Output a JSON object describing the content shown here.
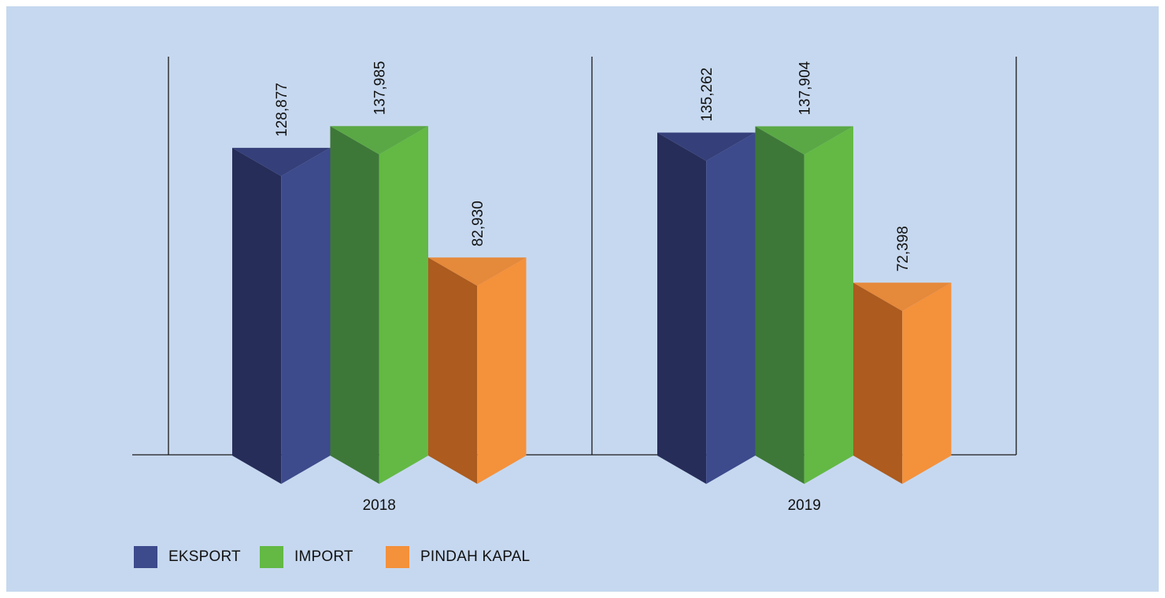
{
  "chart_data": {
    "type": "bar",
    "categories": [
      "2018",
      "2019"
    ],
    "series": [
      {
        "name": "EKSPORT",
        "values": [
          128877,
          135262
        ],
        "color": "#3d4a8c",
        "shade": "#272d59",
        "top": "#35407a"
      },
      {
        "name": "IMPORT",
        "values": [
          137985,
          137904
        ],
        "color": "#63b944",
        "shade": "#3e7838",
        "top": "#5aa845"
      },
      {
        "name": "PINDAH KAPAL",
        "values": [
          82930,
          72398
        ],
        "color": "#f4913b",
        "shade": "#ad5b1e",
        "top": "#e5893a"
      }
    ],
    "value_labels": [
      [
        "128,877",
        "137,985",
        "82,930"
      ],
      [
        "135,262",
        "137,904",
        "72,398"
      ]
    ],
    "title": "",
    "xlabel": "",
    "ylabel": "",
    "legend": "bottom-left",
    "grid": false
  },
  "background_color": "#c6d8ef"
}
